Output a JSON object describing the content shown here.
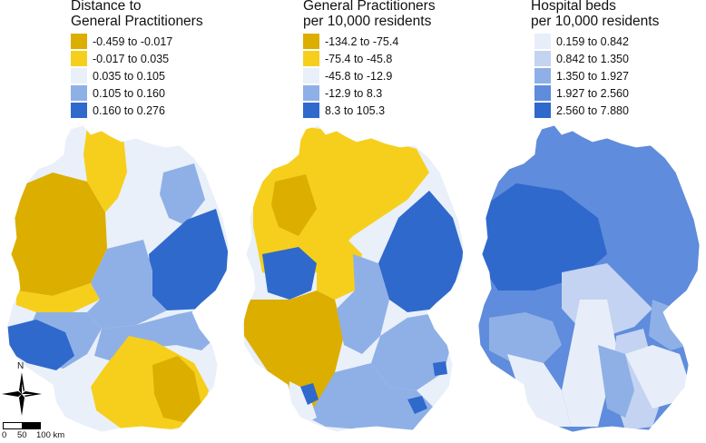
{
  "colors": {
    "c1": "#dcae00",
    "c2": "#f6cf1c",
    "c3": "#e9f0f9",
    "c4": "#8fb0e6",
    "c5": "#2f69cc",
    "b1": "#e8eef9",
    "b2": "#c3d3f1",
    "b3": "#8fb0e6",
    "b4": "#5f8cdc",
    "b5": "#2f69cc"
  },
  "panels": [
    {
      "title": "Distance to\nGeneral Practitioners",
      "legend": [
        "-0.459 to -0.017",
        "-0.017 to 0.035",
        "0.035 to 0.105",
        "0.105 to 0.160",
        "0.160 to 0.276"
      ]
    },
    {
      "title": "General Practitioners\nper 10,000 residents",
      "legend": [
        "-134.2 to -75.4",
        "-75.4 to -45.8",
        "-45.8 to -12.9",
        "-12.9 to 8.3",
        "8.3 to 105.3"
      ]
    },
    {
      "title": "Hospital beds\nper 10,000 residents",
      "legend": [
        "0.159 to 0.842",
        "0.842 to 1.350",
        "1.350 to 1.927",
        "1.927 to 2.560",
        "2.560 to 7.880"
      ]
    }
  ],
  "compass": {
    "label": "N",
    "icon": "compass-rose-icon"
  },
  "scalebar": {
    "labels": [
      "0",
      "50",
      "100 km"
    ]
  }
}
